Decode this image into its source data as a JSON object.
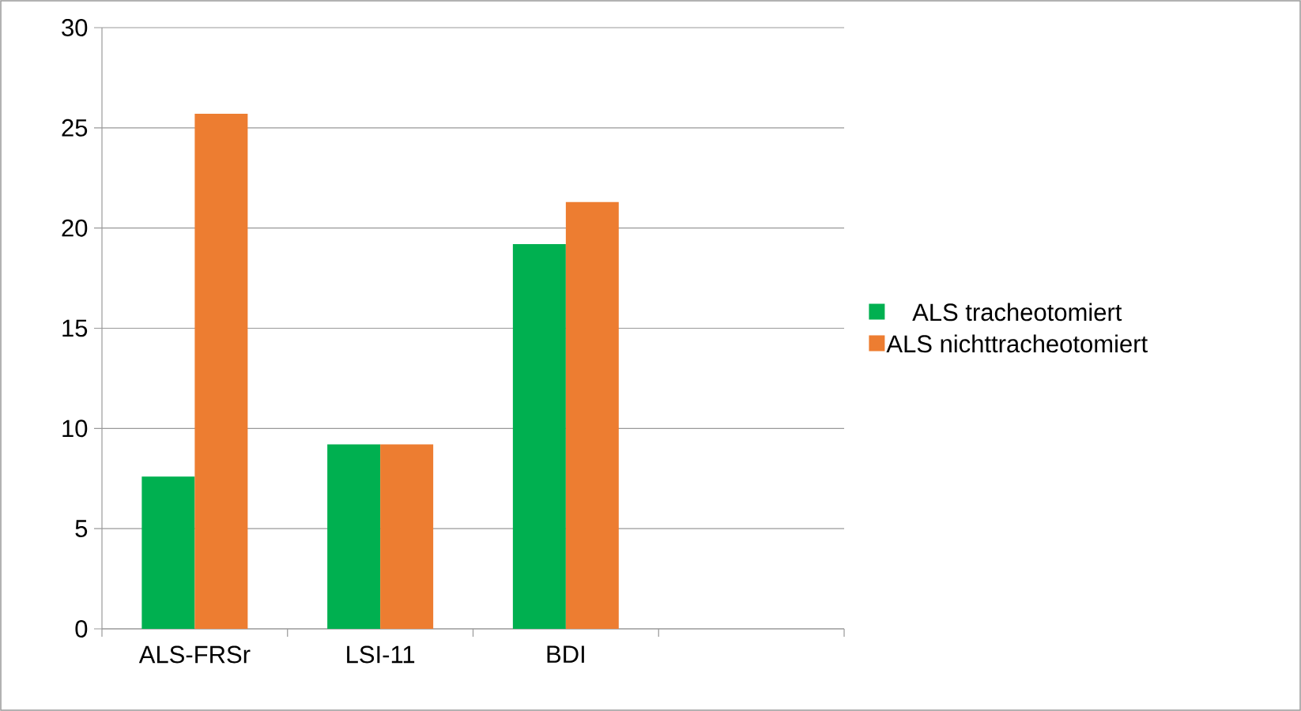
{
  "chart_data": {
    "type": "bar",
    "categories": [
      "ALS-FRSr",
      "LSI-11",
      "BDI",
      null
    ],
    "series": [
      {
        "name": "ALS tracheotomiert",
        "color": "#00b050",
        "values": [
          7.6,
          9.2,
          19.2,
          null
        ]
      },
      {
        "name": "ALS nichttracheotomiert",
        "color": "#ed7d31",
        "values": [
          25.7,
          9.2,
          21.3,
          null
        ]
      }
    ],
    "ylim": [
      0,
      30
    ],
    "yticks": [
      0,
      5,
      10,
      15,
      20,
      25,
      30
    ],
    "grid": "y",
    "legend": "right"
  }
}
